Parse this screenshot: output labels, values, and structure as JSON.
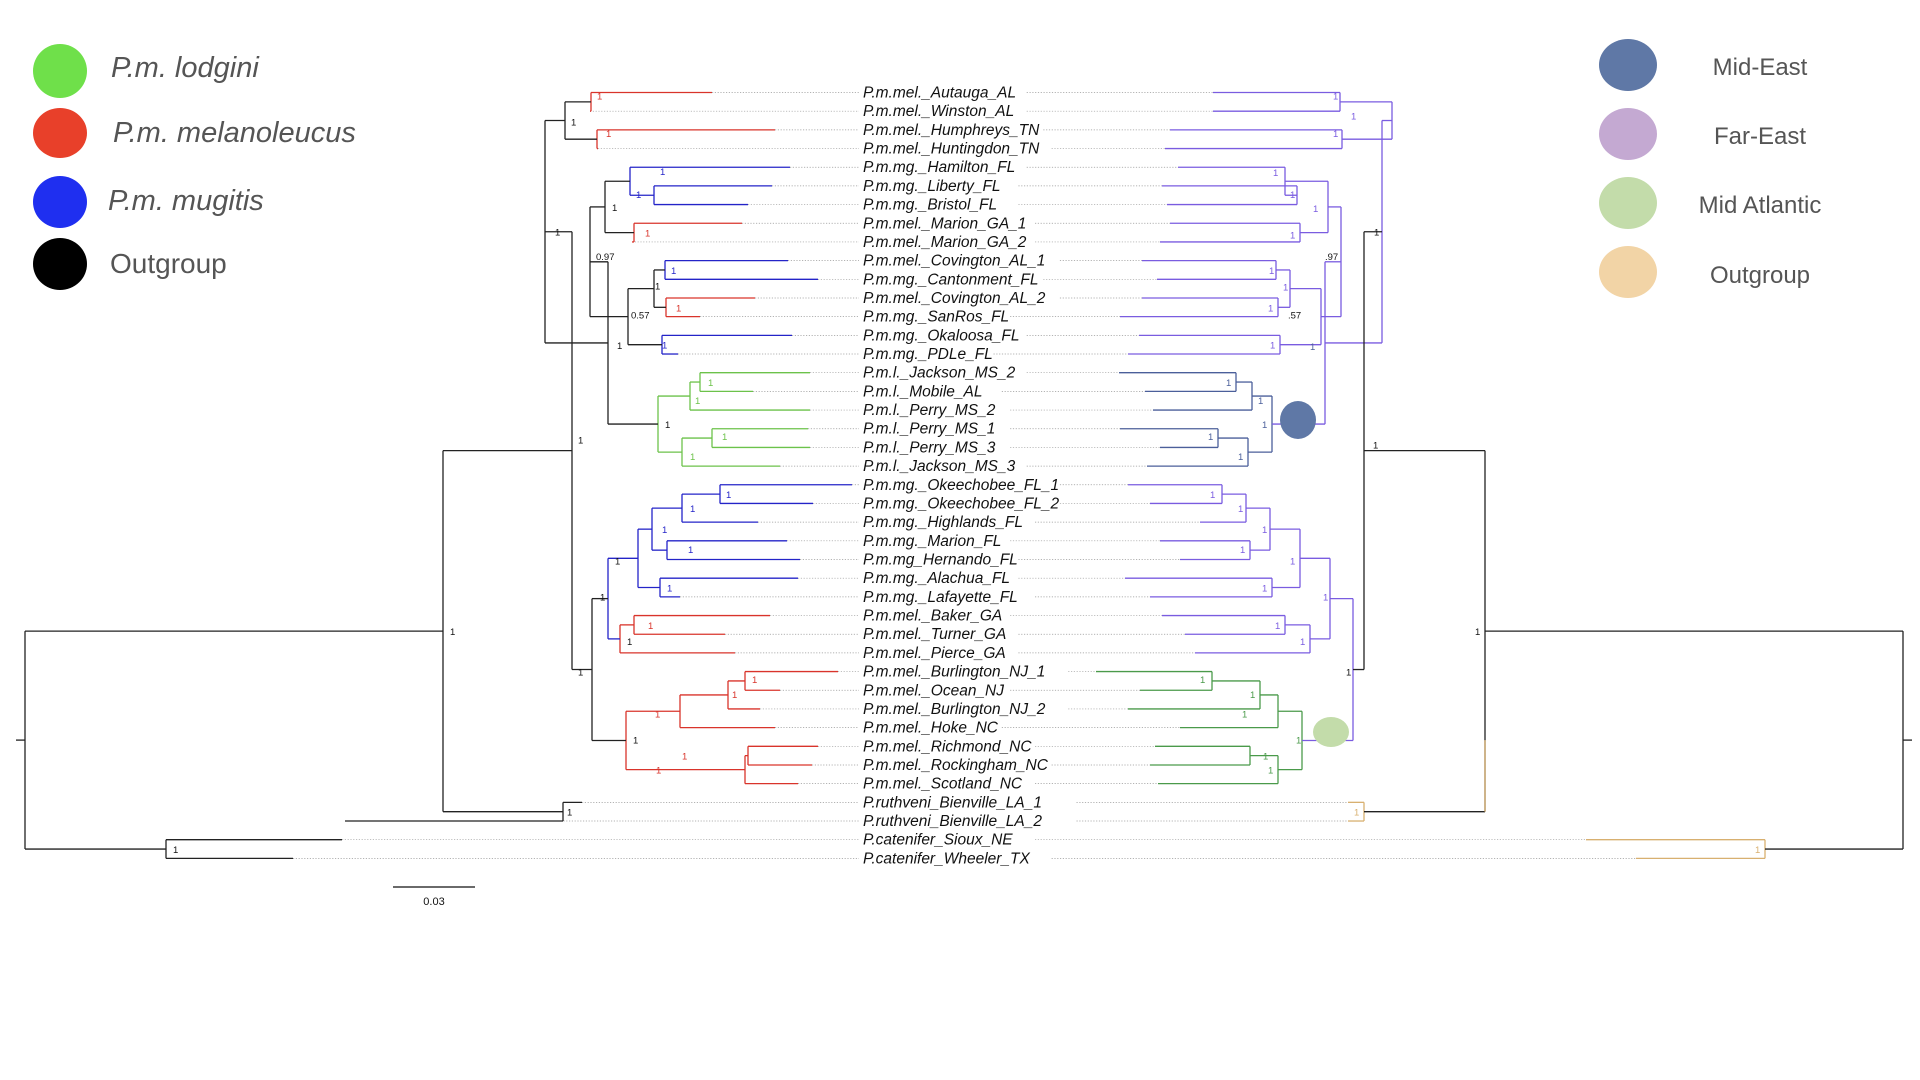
{
  "colors": {
    "lodgini": "#6fe04a",
    "melanoleucus": "#e8402a",
    "mugitis": "#1f2ff0",
    "outgroup": "#000000",
    "mid_east": "#5f78a6",
    "far_east": "#c4a9d2",
    "mid_atlantic": "#c3dcaa",
    "outgroup_right": "#f2d4a6",
    "tree_black": "#222222",
    "line_mel": "#d9342b",
    "line_mg": "#2424c8",
    "line_l": "#6cc24a",
    "line_far": "#7a5ce0",
    "line_mid": "#4b5f9a",
    "line_atl": "#4a9a4a",
    "line_out": "#d8b070"
  },
  "legend_left": [
    {
      "label": "P.m. lodgini",
      "color": "#6fe04a",
      "italic": true
    },
    {
      "label": "P.m. melanoleucus",
      "color": "#e8402a",
      "italic": true
    },
    {
      "label": "P.m. mugitis",
      "color": "#1f2ff0",
      "italic": true
    },
    {
      "label": "Outgroup",
      "color": "#000000",
      "italic": false
    }
  ],
  "legend_right": [
    {
      "label": "Mid-East",
      "color": "#5f78a6"
    },
    {
      "label": "Far-East",
      "color": "#c4a9d2"
    },
    {
      "label": "Mid Atlantic",
      "color": "#c3dcaa"
    },
    {
      "label": "Outgroup",
      "color": "#f2d4a6"
    }
  ],
  "taxa": [
    "P.m.mel._Autauga_AL",
    "P.m.mel._Winston_AL",
    "P.m.mel._Humphreys_TN",
    "P.m.mel._Huntingdon_TN",
    "P.m.mg._Hamilton_FL",
    "P.m.mg._Liberty_FL",
    "P.m.mg._Bristol_FL",
    "P.m.mel._Marion_GA_1",
    "P.m.mel._Marion_GA_2",
    "P.m.mel._Covington_AL_1",
    "P.m.mg._Cantonment_FL",
    "P.m.mel._Covington_AL_2",
    "P.m.mg._SanRos_FL",
    "P.m.mg._Okaloosa_FL",
    "P.m.mg._PDLe_FL",
    "P.m.l._Jackson_MS_2",
    "P.m.l._Mobile_AL",
    "P.m.l._Perry_MS_2",
    "P.m.l._Perry_MS_1",
    "P.m.l._Perry_MS_3",
    "P.m.l._Jackson_MS_3",
    "P.m.mg._Okeechobee_FL_1",
    "P.m.mg._Okeechobee_FL_2",
    "P.m.mg._Highlands_FL",
    "P.m.mg._Marion_FL",
    "P.m.mg_Hernando_FL",
    "P.m.mg._Alachua_FL",
    "P.m.mg._Lafayette_FL",
    "P.m.mel._Baker_GA",
    "P.m.mel._Turner_GA",
    "P.m.mel._Pierce_GA",
    "P.m.mel._Burlington_NJ_1",
    "P.m.mel._Ocean_NJ",
    "P.m.mel._Burlington_NJ_2",
    "P.m.mel._Hoke_NC",
    "P.m.mel._Richmond_NC",
    "P.m.mel._Rockingham_NC",
    "P.m.mel._Scotland_NC",
    "P.ruthveni_Bienville_LA_1",
    "P.ruthveni_Bienville_LA_2",
    "P.catenifer_Sioux_NE",
    "P.catenifer_Wheeler_TX"
  ],
  "support_labels": {
    "one": "1",
    "s097": "0.97",
    "s057": "0.57",
    "r097": ".97",
    "r057": ".57"
  },
  "scale_bar": {
    "label": "0.03"
  }
}
